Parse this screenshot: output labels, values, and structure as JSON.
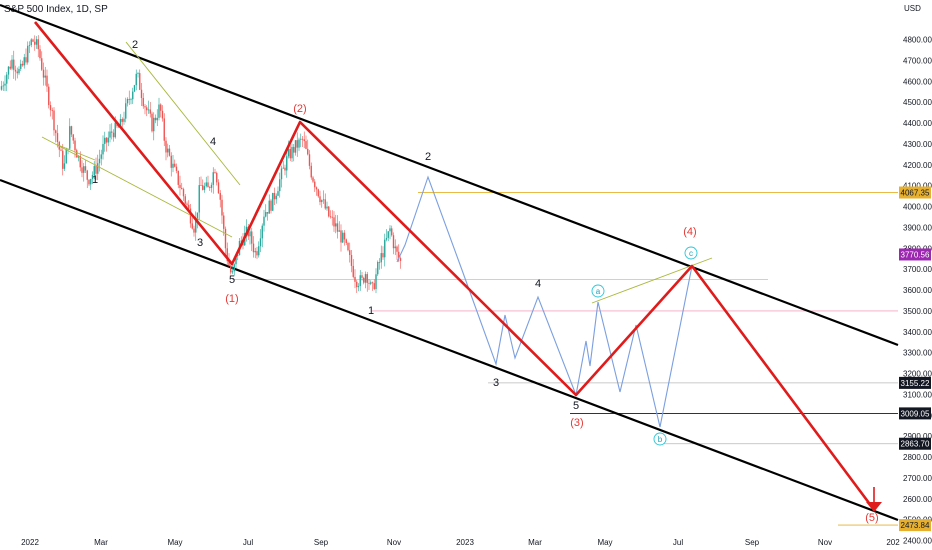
{
  "title": "S&P 500 Index, 1D, SP",
  "chart_data": {
    "type": "candlestick",
    "y_axis": {
      "unit": "USD",
      "ticks": [
        2400,
        2500,
        2600,
        2700,
        2800,
        2900,
        3000,
        3100,
        3200,
        3300,
        3400,
        3500,
        3600,
        3700,
        3800,
        3900,
        4000,
        4100,
        4200,
        4300,
        4400,
        4500,
        4600,
        4700,
        4800
      ]
    },
    "x_axis": {
      "ticks": [
        "2022",
        "Mar",
        "May",
        "Jul",
        "Sep",
        "Nov",
        "2023",
        "Mar",
        "May",
        "Jul",
        "Sep",
        "Nov",
        "202"
      ]
    },
    "price_flags": [
      {
        "label": "4067.35",
        "color": "#e6b02e",
        "text_color": "#131722"
      },
      {
        "label": "3770.56",
        "color": "#9c27b0",
        "text_color": "#ffffff"
      },
      {
        "label": "3155.22",
        "color": "#131722",
        "text_color": "#ffffff"
      },
      {
        "label": "3009.05",
        "color": "#131722",
        "text_color": "#ffffff"
      },
      {
        "label": "2863.70",
        "color": "#131722",
        "text_color": "#ffffff"
      },
      {
        "label": "2473.84",
        "color": "#e6b02e",
        "text_color": "#131722"
      }
    ],
    "wave_labels": [
      {
        "text": "2",
        "color": "#131722"
      },
      {
        "text": "1",
        "color": "#131722"
      },
      {
        "text": "4",
        "color": "#131722"
      },
      {
        "text": "3",
        "color": "#131722"
      },
      {
        "text": "5",
        "color": "#131722"
      },
      {
        "text": "(1)",
        "color": "#e53935"
      },
      {
        "text": "(2)",
        "color": "#e53935"
      },
      {
        "text": "1",
        "color": "#131722"
      },
      {
        "text": "2",
        "color": "#131722"
      },
      {
        "text": "3",
        "color": "#131722"
      },
      {
        "text": "4",
        "color": "#131722"
      },
      {
        "text": "5",
        "color": "#131722"
      },
      {
        "text": "(3)",
        "color": "#e53935"
      },
      {
        "text": "(4)",
        "color": "#e53935"
      },
      {
        "text": "(5)",
        "color": "#e53935"
      }
    ],
    "circle_labels": [
      "a",
      "b",
      "c"
    ],
    "colors": {
      "up": "#26a69a",
      "down": "#ef5350",
      "wick": "#131722",
      "channel": "#000000",
      "projection": "#e01b1b",
      "subwave": "#7b9fe0",
      "trendline": "#a8b83a",
      "level_orange": "#e6b02e",
      "level_pink": "#f3a6c0",
      "level_gray": "#b8b8b8"
    }
  }
}
